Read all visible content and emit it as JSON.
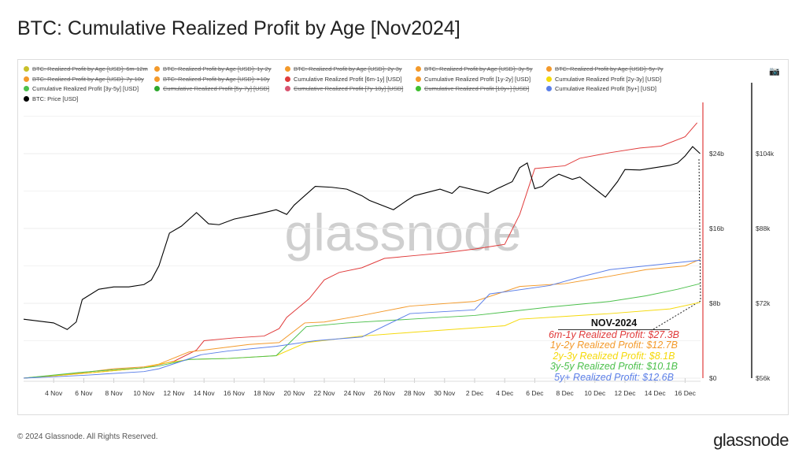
{
  "title": "BTC: Cumulative Realized Profit by Age [Nov2024]",
  "footer": "© 2024 Glassnode. All Rights Reserved.",
  "logo": "glassnode",
  "watermark": "glassnode",
  "legend": [
    {
      "label": "BTC: Realized Profit by Age [USD]: 6m-12m",
      "color": "#c9c02a",
      "off": true
    },
    {
      "label": "BTC: Realized Profit by Age [USD]: 1y-2y",
      "color": "#f39a2b",
      "off": true
    },
    {
      "label": "BTC: Realized Profit by Age [USD]: 2y-3y",
      "color": "#f39a2b",
      "off": true
    },
    {
      "label": "BTC: Realized Profit by Age [USD]: 3y-5y",
      "color": "#f39a2b",
      "off": true
    },
    {
      "label": "BTC: Realized Profit by Age [USD]: 5y-7y",
      "color": "#f39a2b",
      "off": true
    },
    {
      "label": "BTC: Realized Profit by Age [USD]: 7y-10y",
      "color": "#f39a2b",
      "off": true
    },
    {
      "label": "BTC: Realized Profit by Age [USD]: >10y",
      "color": "#f39a2b",
      "off": true
    },
    {
      "label": "Cumulative Realized Profit [6m-1y] [USD]",
      "color": "#e03b3b",
      "off": false
    },
    {
      "label": "Cumulative Realized Profit [1y-2y] [USD]",
      "color": "#f39a2b",
      "off": false
    },
    {
      "label": "Cumulative Realized Profit [2y-3y] [USD]",
      "color": "#f5d90a",
      "off": false
    },
    {
      "label": "Cumulative Realized Profit [3y-5y] [USD]",
      "color": "#4cc04c",
      "off": false
    },
    {
      "label": "Cumulative Realized Profit [5y-7y] [USD]",
      "color": "#2ea82e",
      "off": true
    },
    {
      "label": "Cumulative Realized Profit [7y-10y] [USD]",
      "color": "#d95570",
      "off": true
    },
    {
      "label": "Cumulative Realized Profit [10y+] [USD]",
      "color": "#3fbf2f",
      "off": true
    },
    {
      "label": "Cumulative Realized Profit [5y+] [USD]",
      "color": "#5b7fe8",
      "off": false
    },
    {
      "label": "BTC: Price [USD]",
      "color": "#000000",
      "off": false
    }
  ],
  "annotation": {
    "heading": "NOV-2024",
    "lines": [
      {
        "text": "6m-1y Realized Profit: $27.3B",
        "color": "#e03b3b"
      },
      {
        "text": "1y-2y Realized Profit: $12.7B",
        "color": "#f39a2b"
      },
      {
        "text": "2y-3y Realized Profit: $8.1B",
        "color": "#f5d90a"
      },
      {
        "text": "3y-5y Realized Profit: $10.1B",
        "color": "#4cc04c"
      },
      {
        "text": "5y+ Realized Profit: $12.6B",
        "color": "#5b7fe8"
      }
    ]
  },
  "chart_data": {
    "type": "line",
    "title": "BTC: Cumulative Realized Profit by Age [Nov2024]",
    "x_unit": "days since 2 Nov 2024",
    "xticks": [
      {
        "d": 2,
        "label": "4 Nov"
      },
      {
        "d": 4,
        "label": "6 Nov"
      },
      {
        "d": 6,
        "label": "8 Nov"
      },
      {
        "d": 8,
        "label": "10 Nov"
      },
      {
        "d": 10,
        "label": "12 Nov"
      },
      {
        "d": 12,
        "label": "14 Nov"
      },
      {
        "d": 14,
        "label": "16 Nov"
      },
      {
        "d": 16,
        "label": "18 Nov"
      },
      {
        "d": 18,
        "label": "20 Nov"
      },
      {
        "d": 20,
        "label": "22 Nov"
      },
      {
        "d": 22,
        "label": "24 Nov"
      },
      {
        "d": 24,
        "label": "26 Nov"
      },
      {
        "d": 26,
        "label": "28 Nov"
      },
      {
        "d": 28,
        "label": "30 Nov"
      },
      {
        "d": 30,
        "label": "2 Dec"
      },
      {
        "d": 32,
        "label": "4 Dec"
      },
      {
        "d": 34,
        "label": "6 Dec"
      },
      {
        "d": 36,
        "label": "8 Dec"
      },
      {
        "d": 38,
        "label": "10 Dec"
      },
      {
        "d": 40,
        "label": "12 Dec"
      },
      {
        "d": 42,
        "label": "14 Dec"
      },
      {
        "d": 44,
        "label": "16 Dec"
      }
    ],
    "y_left": {
      "ticks": [
        0,
        8,
        16,
        24
      ],
      "labels": [
        "$0",
        "$8b",
        "$16b",
        "$24b"
      ],
      "range": [
        0,
        28
      ]
    },
    "y_right": {
      "ticks": [
        56,
        72,
        88,
        104
      ],
      "labels": [
        "$56k",
        "$72k",
        "$88k",
        "$104k"
      ],
      "range": [
        56,
        108
      ]
    },
    "series": [
      {
        "name": "Cumulative Realized Profit [6m-1y] [USD]",
        "color": "#e03b3b",
        "axis": "left",
        "points": [
          [
            0,
            0
          ],
          [
            4,
            0.5
          ],
          [
            8,
            1.1
          ],
          [
            10,
            1.8
          ],
          [
            11.5,
            3.0
          ],
          [
            12,
            4.0
          ],
          [
            14,
            4.3
          ],
          [
            16,
            4.5
          ],
          [
            17,
            5.3
          ],
          [
            17.5,
            6.5
          ],
          [
            19,
            8.5
          ],
          [
            20,
            10.5
          ],
          [
            21,
            11.3
          ],
          [
            22.5,
            11.8
          ],
          [
            24,
            12.8
          ],
          [
            26,
            13.1
          ],
          [
            28,
            13.4
          ],
          [
            30,
            13.8
          ],
          [
            32,
            14.3
          ],
          [
            33,
            17.5
          ],
          [
            34,
            22.4
          ],
          [
            36,
            22.7
          ],
          [
            37,
            23.5
          ],
          [
            39,
            24.1
          ],
          [
            41,
            24.6
          ],
          [
            42.4,
            24.8
          ],
          [
            44,
            25.8
          ],
          [
            44.8,
            27.3
          ]
        ]
      },
      {
        "name": "Cumulative Realized Profit [1y-2y] [USD]",
        "color": "#f39a2b",
        "axis": "left",
        "points": [
          [
            0,
            0
          ],
          [
            4,
            0.6
          ],
          [
            6,
            1.0
          ],
          [
            8,
            1.2
          ],
          [
            9,
            1.5
          ],
          [
            11,
            2.8
          ],
          [
            12,
            3.0
          ],
          [
            15,
            3.6
          ],
          [
            17,
            3.8
          ],
          [
            18.7,
            5.9
          ],
          [
            20,
            6.0
          ],
          [
            22.5,
            6.7
          ],
          [
            25.7,
            7.7
          ],
          [
            30,
            8.2
          ],
          [
            33,
            9.8
          ],
          [
            36,
            10.1
          ],
          [
            39,
            10.9
          ],
          [
            41.4,
            11.6
          ],
          [
            44,
            12.0
          ],
          [
            45,
            12.7
          ]
        ]
      },
      {
        "name": "Cumulative Realized Profit [2y-3y] [USD]",
        "color": "#f5d90a",
        "axis": "left",
        "points": [
          [
            0,
            0
          ],
          [
            4,
            0.5
          ],
          [
            6,
            0.8
          ],
          [
            8,
            1.1
          ],
          [
            9,
            1.5
          ],
          [
            11,
            2.0
          ],
          [
            13.6,
            2.1
          ],
          [
            16.8,
            2.4
          ],
          [
            18.8,
            3.8
          ],
          [
            22.5,
            4.5
          ],
          [
            26.7,
            5.0
          ],
          [
            32,
            5.6
          ],
          [
            33,
            6.3
          ],
          [
            36,
            6.6
          ],
          [
            39,
            6.9
          ],
          [
            43,
            7.4
          ],
          [
            45,
            8.1
          ]
        ]
      },
      {
        "name": "Cumulative Realized Profit [3y-5y] [USD]",
        "color": "#4cc04c",
        "axis": "left",
        "points": [
          [
            0,
            0
          ],
          [
            3.7,
            0.6
          ],
          [
            6,
            0.9
          ],
          [
            8,
            1.1
          ],
          [
            9,
            1.3
          ],
          [
            11,
            2.0
          ],
          [
            13.6,
            2.1
          ],
          [
            16.8,
            2.4
          ],
          [
            18.8,
            5.5
          ],
          [
            21.5,
            5.9
          ],
          [
            25.7,
            6.3
          ],
          [
            30,
            6.7
          ],
          [
            35,
            7.6
          ],
          [
            39,
            8.2
          ],
          [
            41.4,
            8.8
          ],
          [
            43.5,
            9.5
          ],
          [
            45,
            10.1
          ]
        ]
      },
      {
        "name": "Cumulative Realized Profit [5y+] [USD]",
        "color": "#5b7fe8",
        "axis": "left",
        "points": [
          [
            0,
            0
          ],
          [
            4,
            0.3
          ],
          [
            8,
            0.7
          ],
          [
            9,
            1.0
          ],
          [
            11.8,
            2.5
          ],
          [
            13.6,
            2.9
          ],
          [
            16.8,
            3.4
          ],
          [
            19.4,
            4.0
          ],
          [
            22.5,
            4.4
          ],
          [
            25.7,
            6.9
          ],
          [
            30,
            7.3
          ],
          [
            31,
            9.0
          ],
          [
            35,
            9.9
          ],
          [
            37,
            10.8
          ],
          [
            39,
            11.6
          ],
          [
            45,
            12.6
          ]
        ]
      },
      {
        "name": "BTC: Price [USD]",
        "color": "#000000",
        "axis": "right",
        "points": [
          [
            0,
            68.6
          ],
          [
            1,
            68.2
          ],
          [
            2,
            67.8
          ],
          [
            2.9,
            66.4
          ],
          [
            3.5,
            68
          ],
          [
            3.9,
            72.8
          ],
          [
            5,
            75
          ],
          [
            6,
            75.5
          ],
          [
            7,
            75.5
          ],
          [
            8,
            76
          ],
          [
            8.5,
            77
          ],
          [
            9,
            80
          ],
          [
            9.7,
            87
          ],
          [
            10.5,
            88.5
          ],
          [
            11.5,
            91.4
          ],
          [
            12.3,
            89
          ],
          [
            13,
            88.8
          ],
          [
            14,
            90
          ],
          [
            15.5,
            91
          ],
          [
            16.8,
            92
          ],
          [
            17.5,
            91
          ],
          [
            18,
            93
          ],
          [
            19.4,
            97
          ],
          [
            20.5,
            96.8
          ],
          [
            21.5,
            96.4
          ],
          [
            22.5,
            95
          ],
          [
            23,
            94
          ],
          [
            24.6,
            92
          ],
          [
            25.5,
            94
          ],
          [
            26,
            95
          ],
          [
            27.7,
            96.4
          ],
          [
            28.5,
            95.5
          ],
          [
            29,
            97
          ],
          [
            30.9,
            95.5
          ],
          [
            31.5,
            96.5
          ],
          [
            32.5,
            98
          ],
          [
            33,
            101
          ],
          [
            33.5,
            102
          ],
          [
            34,
            96.5
          ],
          [
            34.5,
            97
          ],
          [
            35,
            98.5
          ],
          [
            35.6,
            99.6
          ],
          [
            36.5,
            98.5
          ],
          [
            37,
            99
          ],
          [
            38.7,
            94.7
          ],
          [
            39.5,
            98
          ],
          [
            40,
            100.6
          ],
          [
            41,
            100.5
          ],
          [
            42,
            101
          ],
          [
            43,
            101.5
          ],
          [
            43.5,
            102
          ],
          [
            44,
            103.5
          ],
          [
            44.5,
            105.5
          ],
          [
            45,
            104
          ]
        ]
      }
    ]
  }
}
